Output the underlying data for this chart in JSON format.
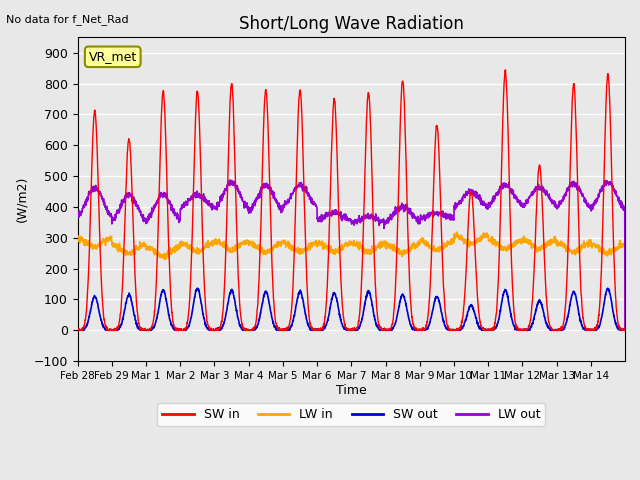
{
  "title": "Short/Long Wave Radiation",
  "ylabel": "(W/m2)",
  "xlabel": "Time",
  "annotation": "No data for f_Net_Rad",
  "label_text": "VR_met",
  "ylim": [
    -100,
    950
  ],
  "yticks": [
    -100,
    0,
    100,
    200,
    300,
    400,
    500,
    600,
    700,
    800,
    900
  ],
  "xtick_labels": [
    "Feb 28",
    "Feb 29",
    "Mar 1",
    "Mar 2",
    "Mar 3",
    "Mar 4",
    "Mar 5",
    "Mar 6",
    "Mar 7",
    "Mar 8",
    "Mar 9",
    "Mar 10",
    "Mar 11",
    "Mar 12",
    "Mar 13",
    "Mar 14"
  ],
  "colors": {
    "SW_in": "#FF0000",
    "LW_in": "#FFA500",
    "SW_out": "#0000CD",
    "LW_out": "#9400D3"
  },
  "legend_labels": [
    "SW in",
    "LW in",
    "SW out",
    "LW out"
  ],
  "background_color": "#E8E8E8",
  "plot_bg_color": "#E8E8E8",
  "grid_color": "#FFFFFF",
  "n_days": 16,
  "points_per_day": 144,
  "SW_in_peaks": [
    710,
    620,
    775,
    775,
    800,
    780,
    780,
    750,
    770,
    810,
    665,
    450,
    840,
    535,
    800,
    830
  ],
  "SW_out_peaks": [
    110,
    115,
    130,
    135,
    130,
    125,
    125,
    120,
    125,
    115,
    110,
    80,
    130,
    95,
    125,
    135
  ],
  "LW_in_base": [
    300,
    280,
    270,
    285,
    290,
    285,
    285,
    285,
    285,
    280,
    290,
    310,
    295,
    295,
    285,
    280
  ],
  "LW_out_base": [
    355,
    340,
    340,
    390,
    380,
    370,
    390,
    355,
    345,
    345,
    360,
    390,
    395,
    395,
    385,
    380
  ],
  "LW_out_peaks": [
    460,
    440,
    440,
    440,
    480,
    470,
    470,
    380,
    370,
    400,
    380,
    450,
    470,
    465,
    475,
    480
  ]
}
